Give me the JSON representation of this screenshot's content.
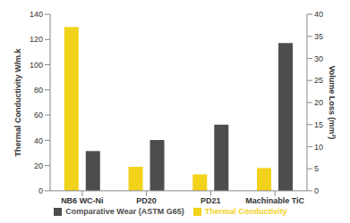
{
  "chart_data": {
    "type": "bar",
    "categories": [
      "NB6 WC-Ni",
      "PD20",
      "PD21",
      "Machinable TiC"
    ],
    "series": [
      {
        "name": "Thermal Conductivity",
        "color": "#f2d21b",
        "values": [
          130,
          19,
          13,
          18
        ]
      },
      {
        "name": "Comparative Wear (ASTM G65)",
        "color": "#4d4d4d",
        "values": [
          9,
          11.5,
          15,
          33.5
        ],
        "axis": "y2"
      }
    ],
    "ylabel": "Thermal Conductivity W/m.k",
    "y2label": "Volume Loss (mm³)",
    "ylim": [
      0,
      140
    ],
    "yticks": [
      0,
      20,
      40,
      60,
      80,
      100,
      120,
      140
    ],
    "y2lim": [
      0,
      40
    ],
    "y2ticks": [
      0,
      5,
      10,
      15,
      20,
      25,
      30,
      35,
      40
    ],
    "grid": false,
    "legend": "bottom"
  }
}
